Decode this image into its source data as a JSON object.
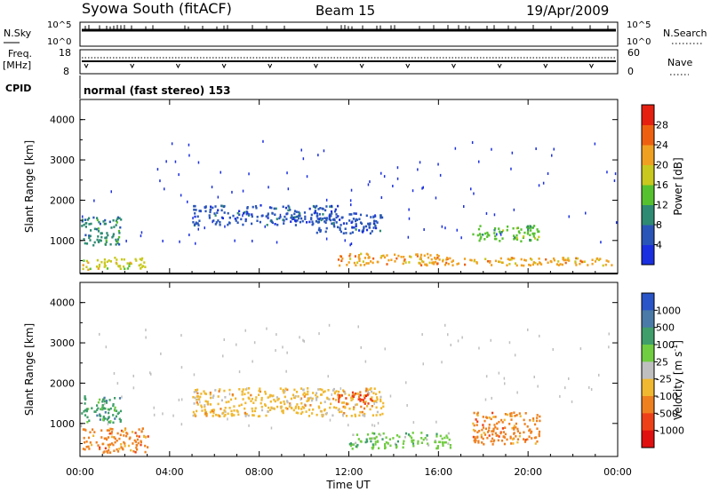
{
  "header": {
    "station": "Syowa South (fitACF)",
    "beam": "Beam 15",
    "date": "19/Apr/2009"
  },
  "noise_panel": {
    "left_label": "N.Sky",
    "right_label": "N.Search",
    "left_ticks": [
      "10^5",
      "10^0"
    ],
    "right_ticks": [
      "10^5",
      "10^0"
    ]
  },
  "freq_panel": {
    "left_label_1": "Freq.",
    "left_label_2": "[MHz]",
    "right_label": "Nave",
    "left_ticks": [
      "18",
      "8"
    ],
    "right_ticks": [
      "60",
      "0"
    ]
  },
  "cpid": {
    "label": "CPID",
    "text": "normal (fast stereo) 153"
  },
  "chart_data": [
    {
      "type": "heatmap",
      "title": "",
      "quantity": "Power",
      "xlabel": "Time UT",
      "ylabel": "Slant Range [km]",
      "x_range_hours": [
        0,
        24
      ],
      "xticks": [
        "00:00",
        "04:00",
        "08:00",
        "12:00",
        "16:00",
        "20:00",
        "00:00"
      ],
      "ylim": [
        180,
        4500
      ],
      "yticks": [
        1000,
        2000,
        3000,
        4000
      ],
      "grid": false,
      "colorbar": {
        "label": "Power [dB]",
        "ticks": [
          "4",
          "8",
          "12",
          "16",
          "20",
          "24",
          "28"
        ],
        "colors": [
          "#1a2fe0",
          "#2a55b8",
          "#2e8a72",
          "#56c12e",
          "#c8c81e",
          "#f0a020",
          "#ee6010",
          "#e52010"
        ]
      },
      "echo_regions": [
        {
          "t": [
            0.1,
            3.0
          ],
          "range_km": [
            300,
            600
          ],
          "level": 4
        },
        {
          "t": [
            0.0,
            1.8
          ],
          "range_km": [
            900,
            1600
          ],
          "level": 2
        },
        {
          "t": [
            5.0,
            11.5
          ],
          "range_km": [
            1400,
            1900
          ],
          "level": 1
        },
        {
          "t": [
            10.5,
            13.5
          ],
          "range_km": [
            1200,
            1700
          ],
          "level": 1
        },
        {
          "t": [
            11.5,
            16.0
          ],
          "range_km": [
            400,
            700
          ],
          "level": 5
        },
        {
          "t": [
            17.5,
            20.5
          ],
          "range_km": [
            1000,
            1400
          ],
          "level": 3
        },
        {
          "t": [
            15.0,
            23.8
          ],
          "range_km": [
            400,
            600
          ],
          "level": 5
        }
      ]
    },
    {
      "type": "heatmap",
      "title": "",
      "quantity": "Velocity",
      "xlabel": "Time UT",
      "ylabel": "Slant Range [km]",
      "x_range_hours": [
        0,
        24
      ],
      "xticks": [
        "00:00",
        "04:00",
        "08:00",
        "12:00",
        "16:00",
        "20:00",
        "00:00"
      ],
      "ylim": [
        180,
        4500
      ],
      "yticks": [
        1000,
        2000,
        3000,
        4000
      ],
      "grid": false,
      "colorbar": {
        "label": "Velocity [m s",
        "label_superscript": "-1",
        "label_close": "]",
        "ticks": [
          "1000",
          "500",
          "100",
          "25",
          "-25",
          "-100",
          "-500",
          "-1000"
        ],
        "colors": [
          "#2a55c8",
          "#4a7aa8",
          "#3f9e6a",
          "#70cc40",
          "#bfbfbf",
          "#f0b830",
          "#ee8020",
          "#ee4018",
          "#e01010"
        ]
      },
      "echo_regions": [
        {
          "t": [
            0.1,
            3.0
          ],
          "range_km": [
            300,
            900
          ],
          "class": "-100"
        },
        {
          "t": [
            5.0,
            13.5
          ],
          "range_km": [
            1200,
            1900
          ],
          "class": "-25"
        },
        {
          "t": [
            11.5,
            13.0
          ],
          "range_km": [
            1500,
            1800
          ],
          "class": "-500"
        },
        {
          "t": [
            12.0,
            16.5
          ],
          "range_km": [
            400,
            800
          ],
          "class": "100"
        },
        {
          "t": [
            17.5,
            20.5
          ],
          "range_km": [
            500,
            1300
          ],
          "class": "-100"
        },
        {
          "t": [
            0.0,
            1.8
          ],
          "range_km": [
            1000,
            1700
          ],
          "class": "500"
        }
      ]
    }
  ]
}
